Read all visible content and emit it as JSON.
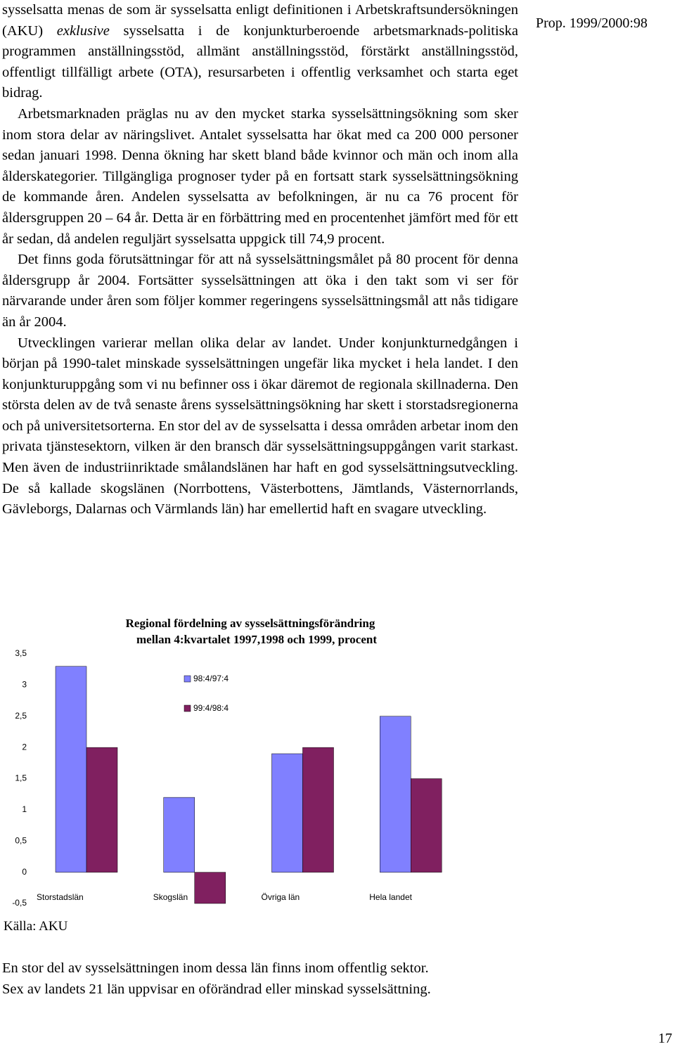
{
  "header": {
    "reference": "Prop. 1999/2000:98"
  },
  "paragraphs": [
    [
      "sysselsatta menas de som är sysselsatta enligt definitionen i Arbetskraftsundersökningen (AKU) ",
      "exklusive",
      " sysselsatta i de konjunkturberoende arbetsmarknads-politiska programmen anställningsstöd, allmänt anställningsstöd, förstärkt anställningsstöd, offentligt tillfälligt arbete (OTA), resursarbeten i offentlig verksamhet och starta eget bidrag."
    ],
    [
      "Arbetsmarknaden präglas nu av den mycket starka sysselsättningsökning som sker inom stora delar av näringslivet. Antalet sysselsatta har ökat med ca 200 000 personer sedan januari 1998. Denna ökning har skett bland både kvinnor och män och inom alla ålderskategorier. Tillgängliga prognoser tyder på en fortsatt stark sysselsättningsökning de kommande åren. Andelen sysselsatta av befolkningen, är nu ca 76 procent för åldersgruppen 20 – 64 år. Detta är en förbättring med en procentenhet jämfört med för ett år sedan, då andelen reguljärt sysselsatta uppgick till 74,9 procent."
    ],
    [
      "Det finns goda förutsättningar för att nå sysselsättningsmålet på 80 procent för denna åldersgrupp år 2004. Fortsätter sysselsättningen att öka i den takt som vi ser för närvarande under åren som följer kommer regeringens sysselsättningsmål att nås tidigare än år 2004."
    ],
    [
      "Utvecklingen varierar mellan olika delar av landet. Under konjunkturnedgången i början på 1990-talet minskade sysselsättningen ungefär lika mycket i hela landet. I den konjunkturuppgång som vi nu befinner oss i ökar däremot de regionala skillnaderna. Den största delen av de två senaste årens sysselsättningsökning har skett i storstadsregionerna och på universitetsorterna. En stor del av de sysselsatta i dessa områden arbetar inom den privata tjänstesektorn, vilken är den bransch där sysselsättningsuppgången varit starkast. Men även de industriinriktade smålandslänen har haft en god sysselsättningsutveckling. De så kallade skogslänen (Norrbottens, Västerbottens, Jämtlands, Västernorrlands, Gävleborgs, Dalarnas och Värmlands län) har emellertid haft en svagare utveckling."
    ]
  ],
  "chart_data": {
    "type": "bar",
    "title": [
      "Regional fördelning av sysselsättningsförändring",
      "mellan 4:kvartalet 1997,1998 och 1999, procent"
    ],
    "categories": [
      "Storstadslän",
      "Skogslän",
      "Övriga län",
      "Hela landet"
    ],
    "series": [
      {
        "name": "98:4/97:4",
        "color": "#8080ff",
        "values": [
          3.3,
          1.2,
          1.9,
          2.5
        ]
      },
      {
        "name": "99:4/98:4",
        "color": "#802060",
        "values": [
          2.0,
          -0.5,
          2.0,
          1.5
        ]
      }
    ],
    "ylim": [
      -0.5,
      3.5
    ],
    "yticks": [
      {
        "value": -0.5,
        "label": "-0,5"
      },
      0,
      {
        "value": 0.5,
        "label": "0,5"
      },
      1,
      {
        "value": 1.5,
        "label": "1,5"
      },
      2,
      {
        "value": 2.5,
        "label": "2,5"
      },
      3,
      {
        "value": 3.5,
        "label": "3,5"
      }
    ],
    "grid": false
  },
  "source": "Källa: AKU",
  "closing": [
    "En stor del av sysselsättningen inom dessa län finns inom offentlig sektor.",
    "Sex av landets 21 län uppvisar en oförändrad eller minskad sysselsättning."
  ],
  "page_number": "17"
}
